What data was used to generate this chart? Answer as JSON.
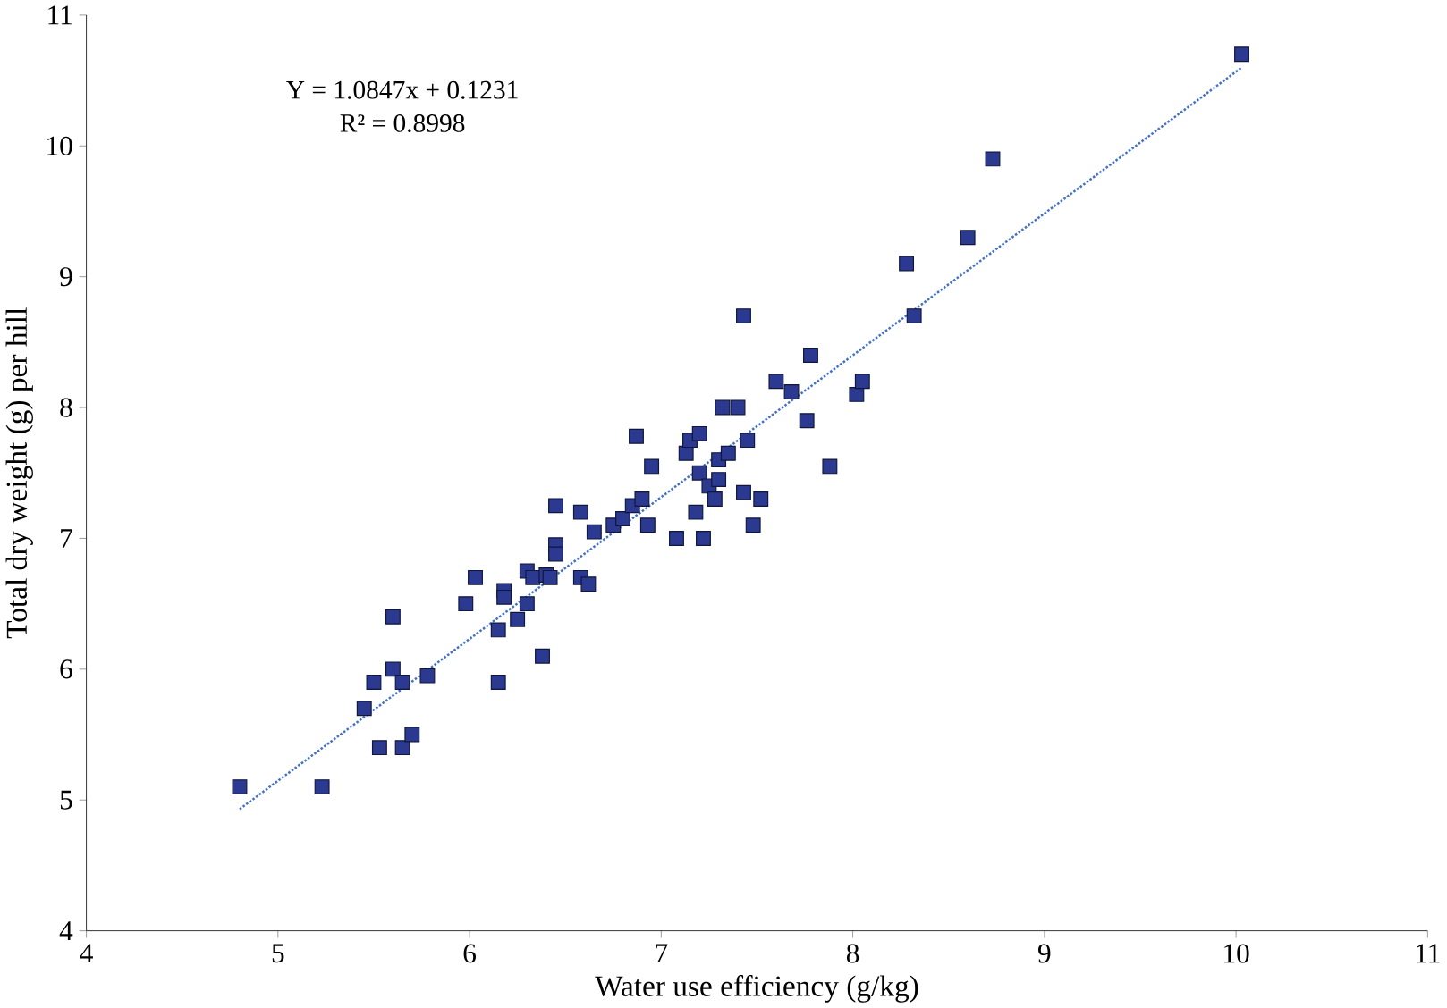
{
  "chart_data": {
    "type": "scatter",
    "xlabel": "Water use efficiency (g/kg)",
    "ylabel": "Total dry weight (g) per hill",
    "xlim": [
      4,
      11
    ],
    "ylim": [
      4,
      11
    ],
    "xticks": [
      4,
      5,
      6,
      7,
      8,
      9,
      10,
      11
    ],
    "yticks": [
      4,
      5,
      6,
      7,
      8,
      9,
      10,
      11
    ],
    "grid": false,
    "annotations": [
      "Y = 1.0847x + 0.1231",
      "R² = 0.8998"
    ],
    "series": [
      {
        "marker": "square",
        "color": "#2b3990",
        "x": [
          4.8,
          5.23,
          5.45,
          5.5,
          5.53,
          5.6,
          5.6,
          5.65,
          5.65,
          5.7,
          5.78,
          5.98,
          6.03,
          6.15,
          6.15,
          6.18,
          6.18,
          6.25,
          6.3,
          6.3,
          6.33,
          6.38,
          6.4,
          6.42,
          6.45,
          6.45,
          6.45,
          6.58,
          6.58,
          6.62,
          6.65,
          6.75,
          6.8,
          6.85,
          6.87,
          6.9,
          6.93,
          6.95,
          7.08,
          7.13,
          7.15,
          7.18,
          7.2,
          7.2,
          7.22,
          7.25,
          7.28,
          7.3,
          7.3,
          7.32,
          7.35,
          7.4,
          7.43,
          7.43,
          7.45,
          7.48,
          7.52,
          7.6,
          7.68,
          7.76,
          7.78,
          7.88,
          8.02,
          8.05,
          8.28,
          8.32,
          8.6,
          8.73,
          10.03
        ],
        "values": [
          5.1,
          5.1,
          5.7,
          5.9,
          5.4,
          6.4,
          6.0,
          5.9,
          5.4,
          5.5,
          5.95,
          6.5,
          6.7,
          5.9,
          6.3,
          6.6,
          6.55,
          6.38,
          6.75,
          6.5,
          6.7,
          6.1,
          6.72,
          6.7,
          6.95,
          6.88,
          7.25,
          6.7,
          7.2,
          6.65,
          7.05,
          7.1,
          7.15,
          7.25,
          7.78,
          7.3,
          7.1,
          7.55,
          7.0,
          7.65,
          7.75,
          7.2,
          7.8,
          7.5,
          7.0,
          7.4,
          7.3,
          7.45,
          7.6,
          8.0,
          7.65,
          8.0,
          7.35,
          8.7,
          7.75,
          7.1,
          7.3,
          8.2,
          8.12,
          7.9,
          8.4,
          7.55,
          8.1,
          8.2,
          9.1,
          8.7,
          9.3,
          9.9,
          10.7
        ]
      },
      {
        "type": "line",
        "line_style": "dotted",
        "marker": "none",
        "color": "#4472c4",
        "x": [
          4.8,
          10.03
        ],
        "values": [
          4.93,
          10.6
        ]
      }
    ]
  }
}
